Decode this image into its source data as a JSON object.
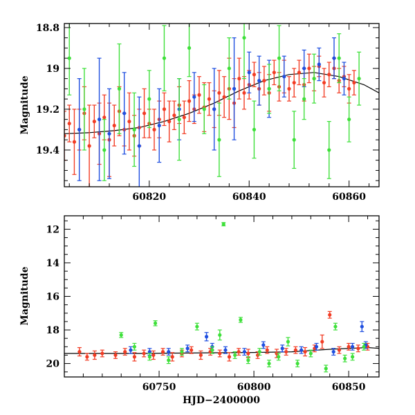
{
  "colors": {
    "blue": "#1f4fe0",
    "red": "#f23c24",
    "green": "#3ee03a",
    "model": "#000000"
  },
  "chart_data": [
    {
      "type": "scatter",
      "title": "",
      "xlabel": "",
      "ylabel": "Magnitude",
      "xlim": [
        60803,
        60866
      ],
      "ylim": [
        19.58,
        18.78
      ],
      "y_inverted": true,
      "xticks": [
        60820,
        60840,
        60860
      ],
      "yticks": [
        18.8,
        19,
        19.2,
        19.4
      ],
      "ytick_labels": [
        "18.8",
        "19",
        "19.2",
        "19.4"
      ],
      "xminor": 4,
      "yminor": 0.05,
      "grid": false,
      "legend": "none",
      "model_curve": {
        "x": [
          60803,
          60808,
          60813,
          60818,
          60823,
          60828,
          60833,
          60838,
          60843,
          60848,
          60853,
          60858,
          60863,
          60866
        ],
        "y": [
          19.32,
          19.315,
          19.305,
          19.29,
          19.26,
          19.22,
          19.17,
          19.11,
          19.06,
          19.03,
          19.02,
          19.04,
          19.08,
          19.12
        ]
      },
      "series": [
        {
          "color": "red",
          "x": [
            60803,
            60804,
            60805,
            60806,
            60807,
            60808,
            60809,
            60810,
            60811,
            60812,
            60813,
            60814,
            60815,
            60816,
            60817,
            60818,
            60819,
            60820,
            60821,
            60822,
            60823,
            60824,
            60825,
            60826,
            60827,
            60828,
            60829,
            60830,
            60831,
            60832,
            60833,
            60834,
            60835,
            60836,
            60837,
            60838,
            60839,
            60840,
            60841,
            60842,
            60843,
            60844,
            60845,
            60846,
            60847,
            60848,
            60849,
            60850,
            60851,
            60852,
            60853,
            60854,
            60855,
            60856,
            60857,
            60858,
            60859,
            60860,
            60861
          ],
          "y": [
            19.33,
            19.27,
            19.36,
            19.3,
            19.22,
            19.38,
            19.26,
            19.32,
            19.24,
            19.35,
            19.28,
            19.21,
            19.3,
            19.26,
            19.33,
            19.29,
            19.22,
            19.27,
            19.3,
            19.25,
            19.2,
            19.26,
            19.23,
            19.18,
            19.24,
            19.16,
            19.2,
            19.13,
            19.19,
            19.15,
            19.2,
            19.12,
            19.14,
            19.1,
            19.17,
            19.05,
            19.12,
            19.08,
            19.03,
            19.1,
            19.06,
            19.12,
            19.02,
            19.09,
            19.04,
            19.1,
            19.07,
            19.02,
            19.08,
            19.0,
            19.05,
            18.99,
            19.07,
            19.03,
            19.0,
            19.06,
            19.04,
            19.1,
            19.07
          ],
          "err": [
            0.12,
            0.09,
            0.16,
            0.1,
            0.13,
            0.2,
            0.08,
            0.15,
            0.11,
            0.18,
            0.1,
            0.12,
            0.08,
            0.14,
            0.1,
            0.09,
            0.12,
            0.07,
            0.1,
            0.09,
            0.08,
            0.1,
            0.07,
            0.09,
            0.08,
            0.1,
            0.07,
            0.09,
            0.12,
            0.08,
            0.09,
            0.11,
            0.1,
            0.15,
            0.12,
            0.1,
            0.08,
            0.07,
            0.06,
            0.08,
            0.07,
            0.09,
            0.06,
            0.07,
            0.08,
            0.06,
            0.07,
            0.06,
            0.08,
            0.07,
            0.06,
            0.05,
            0.07,
            0.06,
            0.05,
            0.06,
            0.05,
            0.07,
            0.06
          ]
        },
        {
          "color": "blue",
          "x": [
            60806,
            60810,
            60812,
            60815,
            60818,
            60822,
            60826,
            60829,
            60833,
            60837,
            60840,
            60842,
            60844,
            60847,
            60851,
            60854,
            60857,
            60859
          ],
          "y": [
            19.3,
            19.25,
            19.32,
            19.22,
            19.38,
            19.28,
            19.2,
            19.14,
            19.2,
            19.1,
            19.02,
            19.06,
            19.1,
            19.04,
            19.0,
            18.98,
            18.95,
            19.05
          ],
          "err": [
            0.25,
            0.3,
            0.22,
            0.2,
            0.24,
            0.18,
            0.15,
            0.12,
            0.2,
            0.25,
            0.1,
            0.12,
            0.14,
            0.1,
            0.09,
            0.08,
            0.1,
            0.08
          ]
        },
        {
          "color": "green",
          "x": [
            60804,
            60807,
            60811,
            60814,
            60817,
            60820,
            60823,
            60826,
            60828,
            60831,
            60834,
            60836,
            60839,
            60841,
            60844,
            60846,
            60849,
            60851,
            60853,
            60856,
            60858,
            60860,
            60862
          ],
          "y": [
            18.95,
            19.2,
            19.4,
            19.1,
            19.3,
            19.15,
            18.95,
            19.25,
            18.9,
            19.2,
            19.35,
            19.0,
            18.85,
            19.3,
            19.1,
            18.95,
            19.35,
            19.15,
            19.05,
            19.4,
            18.95,
            19.25,
            19.05
          ],
          "err": [
            0.18,
            0.2,
            0.15,
            0.22,
            0.18,
            0.14,
            0.16,
            0.2,
            0.14,
            0.12,
            0.18,
            0.15,
            0.2,
            0.14,
            0.12,
            0.16,
            0.14,
            0.1,
            0.12,
            0.14,
            0.12,
            0.11,
            0.13
          ]
        }
      ]
    },
    {
      "type": "scatter",
      "title": "",
      "xlabel": "HJD−2400000",
      "ylabel": "Magnitude",
      "xlim": [
        60700,
        60866
      ],
      "ylim": [
        20.8,
        11.2
      ],
      "y_inverted": true,
      "xticks": [
        60750,
        60800,
        60850
      ],
      "yticks": [
        12,
        14,
        16,
        18,
        20
      ],
      "ytick_labels": [
        "12",
        "14",
        "16",
        "18",
        "20"
      ],
      "xminor": 10,
      "yminor": 0.5,
      "grid": false,
      "legend": "none",
      "model_curve": {
        "x": [
          60700,
          60720,
          60740,
          60760,
          60780,
          60800,
          60820,
          60840,
          60860,
          60866
        ],
        "y": [
          19.4,
          19.4,
          19.4,
          19.38,
          19.36,
          19.34,
          19.3,
          19.15,
          19.05,
          19.1
        ]
      },
      "series": [
        {
          "color": "red",
          "x": [
            60708,
            60712,
            60716,
            60720,
            60727,
            60732,
            60737,
            60742,
            60747,
            60752,
            60757,
            60762,
            60767,
            60772,
            60777,
            60782,
            60787,
            60792,
            60797,
            60802,
            60807,
            60812,
            60817,
            60822,
            60827,
            60832,
            60836,
            60840,
            60845,
            60850,
            60855,
            60860
          ],
          "y": [
            19.3,
            19.6,
            19.5,
            19.4,
            19.5,
            19.3,
            19.6,
            19.4,
            19.5,
            19.3,
            19.6,
            19.4,
            19.2,
            19.5,
            19.3,
            19.4,
            19.6,
            19.3,
            19.4,
            19.5,
            19.2,
            19.4,
            19.3,
            19.2,
            19.3,
            19.1,
            18.7,
            17.1,
            19.2,
            19.0,
            19.1,
            19.0
          ],
          "err": [
            0.25,
            0.2,
            0.25,
            0.2,
            0.2,
            0.2,
            0.25,
            0.2,
            0.25,
            0.2,
            0.25,
            0.2,
            0.2,
            0.25,
            0.2,
            0.2,
            0.25,
            0.2,
            0.25,
            0.2,
            0.2,
            0.25,
            0.2,
            0.2,
            0.25,
            0.2,
            0.4,
            0.2,
            0.2,
            0.2,
            0.2,
            0.2
          ]
        },
        {
          "color": "blue",
          "x": [
            60735,
            60745,
            60755,
            60765,
            60775,
            60778,
            60785,
            60795,
            60805,
            60815,
            60825,
            60833,
            60842,
            60852,
            60857,
            60859
          ],
          "y": [
            19.2,
            19.3,
            19.3,
            19.1,
            18.4,
            19.0,
            19.2,
            19.3,
            18.9,
            19.1,
            19.2,
            19.0,
            19.3,
            19.0,
            17.8,
            18.9
          ],
          "err": [
            0.2,
            0.2,
            0.2,
            0.2,
            0.25,
            0.2,
            0.2,
            0.2,
            0.2,
            0.2,
            0.2,
            0.2,
            0.2,
            0.2,
            0.3,
            0.2
          ]
        },
        {
          "color": "green",
          "x": [
            60730,
            60737,
            60745,
            60748,
            60755,
            60762,
            60770,
            60778,
            60782,
            60784,
            60790,
            60793,
            60797,
            60803,
            60808,
            60813,
            60818,
            60823,
            60830,
            60838,
            60843,
            60848,
            60852,
            60858
          ],
          "y": [
            18.3,
            19.0,
            19.6,
            17.6,
            19.8,
            19.3,
            17.8,
            19.2,
            18.3,
            11.7,
            19.5,
            17.4,
            19.8,
            19.3,
            20.0,
            19.6,
            18.7,
            20.0,
            19.4,
            20.3,
            17.8,
            19.7,
            19.6,
            19.0
          ],
          "err": [
            0.15,
            0.2,
            0.2,
            0.15,
            0.2,
            0.2,
            0.2,
            0.2,
            0.3,
            0.1,
            0.2,
            0.15,
            0.2,
            0.2,
            0.2,
            0.2,
            0.25,
            0.2,
            0.2,
            0.2,
            0.2,
            0.2,
            0.2,
            0.2
          ]
        }
      ]
    }
  ]
}
